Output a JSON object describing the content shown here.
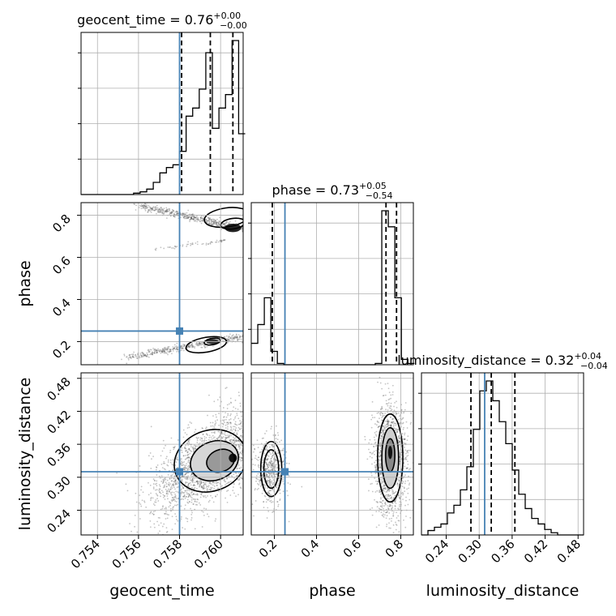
{
  "chart_data": {
    "type": "corner",
    "title": "",
    "parameters": [
      {
        "name": "geocent_time",
        "range": [
          0.7532,
          0.7611
        ],
        "truth": 0.758,
        "ticks": [
          "0.754",
          "0.756",
          "0.758",
          "0.760"
        ],
        "tick_values": [
          0.754,
          0.756,
          0.758,
          0.76
        ],
        "title_main": "geocent_time = 0.76",
        "title_sup": "+0.00",
        "title_sub": "−0.00",
        "quantiles": [
          0.7581,
          0.7595,
          0.7606
        ]
      },
      {
        "name": "phase",
        "range": [
          0.09,
          0.86
        ],
        "truth": 0.25,
        "ticks": [
          "0.2",
          "0.4",
          "0.6",
          "0.8"
        ],
        "tick_values": [
          0.2,
          0.4,
          0.6,
          0.8
        ],
        "title_main": "phase = 0.73",
        "title_sup": "+0.05",
        "title_sub": "−0.54",
        "quantiles": [
          0.19,
          0.73,
          0.78
        ]
      },
      {
        "name": "luminosity_distance",
        "range": [
          0.195,
          0.49
        ],
        "truth": 0.31,
        "ticks": [
          "0.24",
          "0.30",
          "0.36",
          "0.42",
          "0.48"
        ],
        "tick_values": [
          0.24,
          0.3,
          0.36,
          0.42,
          0.48
        ],
        "title_main": "luminosity_distance = 0.32",
        "title_sup": "+0.04",
        "title_sub": "−0.04",
        "quantiles": [
          0.285,
          0.322,
          0.365
        ]
      }
    ],
    "histograms": [
      {
        "param": "geocent_time",
        "bin_edges": [
          0.7532,
          0.75352,
          0.75384,
          0.75416,
          0.75448,
          0.7548,
          0.75512,
          0.75544,
          0.75576,
          0.75608,
          0.7564,
          0.75672,
          0.75704,
          0.75736,
          0.75768,
          0.758,
          0.75832,
          0.75864,
          0.75896,
          0.75928,
          0.7596,
          0.75992,
          0.76024,
          0.76056,
          0.76088,
          0.7612
        ],
        "counts": [
          0,
          0,
          0,
          0,
          0,
          0,
          0,
          0,
          1,
          2,
          4,
          9,
          16,
          20,
          22,
          32,
          58,
          64,
          78,
          105,
          49,
          64,
          74,
          114,
          45
        ]
      },
      {
        "param": "phase",
        "bin_edges": [
          0.09,
          0.121,
          0.152,
          0.183,
          0.214,
          0.245,
          0.276,
          0.307,
          0.338,
          0.369,
          0.4,
          0.431,
          0.462,
          0.493,
          0.524,
          0.555,
          0.586,
          0.617,
          0.648,
          0.679,
          0.71,
          0.741,
          0.772,
          0.803,
          0.834,
          0.865
        ],
        "counts": [
          16,
          30,
          50,
          10,
          1,
          0,
          0,
          0,
          0,
          0,
          0,
          0,
          0,
          0,
          0,
          0,
          0,
          0,
          0,
          1,
          115,
          103,
          50,
          4,
          1
        ]
      },
      {
        "param": "luminosity_distance",
        "bin_edges": [
          0.195,
          0.2068,
          0.2186,
          0.2304,
          0.2422,
          0.254,
          0.2658,
          0.2776,
          0.2894,
          0.3012,
          0.313,
          0.3248,
          0.3366,
          0.3484,
          0.3602,
          0.372,
          0.3838,
          0.3956,
          0.4074,
          0.4192,
          0.431,
          0.4428,
          0.4546,
          0.4664,
          0.4782,
          0.49
        ],
        "counts": [
          0,
          4,
          7,
          10,
          20,
          27,
          41,
          62,
          96,
          131,
          140,
          122,
          103,
          83,
          59,
          37,
          24,
          15,
          10,
          5,
          2,
          0,
          0,
          0,
          0
        ]
      }
    ],
    "contour_levels": 3,
    "grid": true,
    "truth_color": "#4682b4",
    "line_color": "#000000"
  }
}
